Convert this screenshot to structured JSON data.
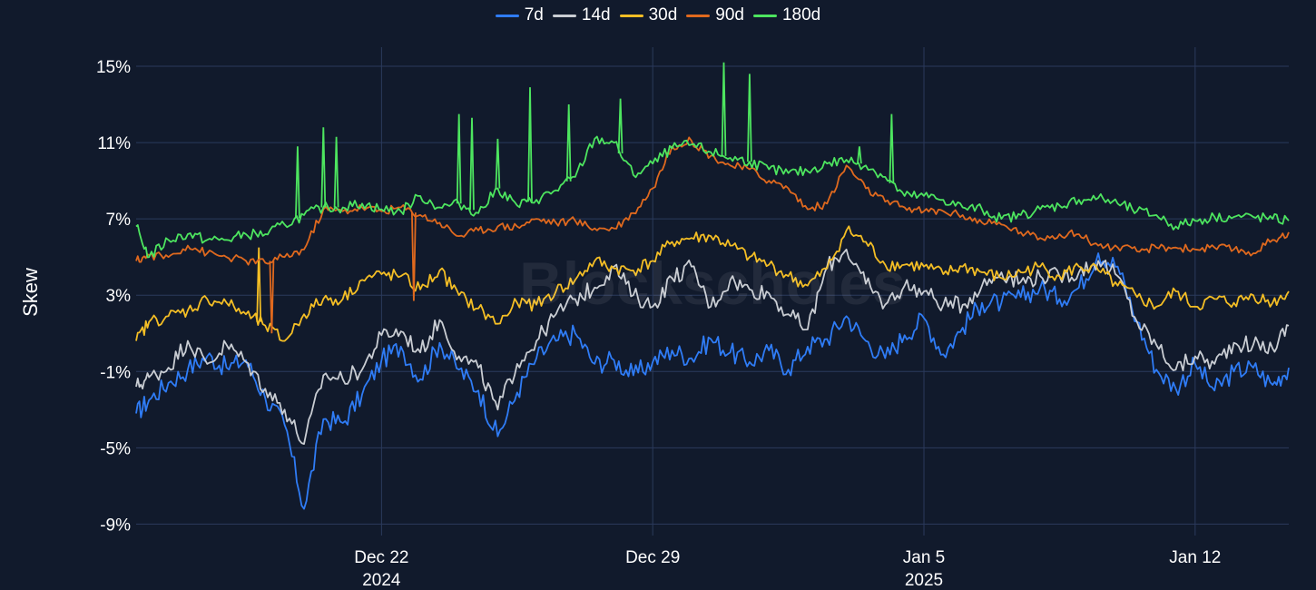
{
  "watermark": "Blockscholes",
  "chart_data": {
    "type": "line",
    "xlabel": "",
    "ylabel": "Skew",
    "y_unit": "%",
    "ylim": [
      -9.6,
      16.0
    ],
    "y_ticks": [
      15,
      11,
      7,
      3,
      -1,
      -5,
      -9
    ],
    "y_tick_labels": [
      "15%",
      "11%",
      "7%",
      "3%",
      "-1%",
      "-5%",
      "-9%"
    ],
    "x_range": [
      "2024-12-15T16:00",
      "2025-01-14T10:00"
    ],
    "x_ticks": [
      {
        "date": "2024-12-22",
        "label": "Dec 22",
        "sublabel": "2024"
      },
      {
        "date": "2024-12-29",
        "label": "Dec 29",
        "sublabel": ""
      },
      {
        "date": "2025-01-05",
        "label": "Jan 5",
        "sublabel": "2025"
      },
      {
        "date": "2025-01-12",
        "label": "Jan 12",
        "sublabel": ""
      }
    ],
    "grid": true,
    "legend_position": "top-center",
    "x": [
      "2024-12-15T16:00",
      "2024-12-16T00:00",
      "2024-12-16T12:00",
      "2024-12-17T00:00",
      "2024-12-17T12:00",
      "2024-12-18T00:00",
      "2024-12-18T12:00",
      "2024-12-19T00:00",
      "2024-12-19T12:00",
      "2024-12-20T00:00",
      "2024-12-20T12:00",
      "2024-12-21T00:00",
      "2024-12-21T12:00",
      "2024-12-22T00:00",
      "2024-12-22T12:00",
      "2024-12-23T00:00",
      "2024-12-23T12:00",
      "2024-12-24T00:00",
      "2024-12-24T12:00",
      "2024-12-25T00:00",
      "2024-12-25T12:00",
      "2024-12-26T00:00",
      "2024-12-26T12:00",
      "2024-12-27T00:00",
      "2024-12-27T12:00",
      "2024-12-28T00:00",
      "2024-12-28T12:00",
      "2024-12-29T00:00",
      "2024-12-29T12:00",
      "2024-12-30T00:00",
      "2024-12-30T12:00",
      "2024-12-31T00:00",
      "2024-12-31T12:00",
      "2025-01-01T00:00",
      "2025-01-01T12:00",
      "2025-01-02T00:00",
      "2025-01-02T12:00",
      "2025-01-03T00:00",
      "2025-01-03T12:00",
      "2025-01-04T00:00",
      "2025-01-04T12:00",
      "2025-01-05T00:00",
      "2025-01-05T12:00",
      "2025-01-06T00:00",
      "2025-01-06T12:00",
      "2025-01-07T00:00",
      "2025-01-07T12:00",
      "2025-01-08T00:00",
      "2025-01-08T12:00",
      "2025-01-09T00:00",
      "2025-01-09T12:00",
      "2025-01-10T00:00",
      "2025-01-10T12:00",
      "2025-01-11T00:00",
      "2025-01-11T12:00",
      "2025-01-12T00:00",
      "2025-01-12T12:00",
      "2025-01-13T00:00",
      "2025-01-13T12:00",
      "2025-01-14T00:00",
      "2025-01-14T10:00"
    ],
    "series": [
      {
        "name": "7d",
        "color": "#2f7cf6",
        "values": [
          -3.2,
          -2.5,
          -1.6,
          -0.9,
          -0.2,
          -0.8,
          -0.4,
          -2.4,
          -3.8,
          -8.2,
          -3.5,
          -3.7,
          -2.2,
          -0.4,
          0.3,
          -1.4,
          0.5,
          -0.9,
          -2.0,
          -4.4,
          -2.1,
          -0.3,
          0.6,
          1.0,
          -0.6,
          -0.4,
          -1.2,
          -0.5,
          0.1,
          -0.3,
          0.7,
          0.0,
          -0.5,
          0.1,
          -0.9,
          0.3,
          0.7,
          1.9,
          0.6,
          -0.3,
          0.9,
          1.8,
          -0.1,
          1.3,
          2.6,
          2.6,
          2.9,
          3.4,
          2.8,
          3.4,
          5.2,
          4.5,
          1.6,
          -0.9,
          -1.9,
          -0.6,
          -2.0,
          -1.0,
          -0.8,
          -1.7,
          -0.8
        ]
      },
      {
        "name": "14d",
        "color": "#c9cdd3",
        "values": [
          -1.8,
          -1.3,
          -0.8,
          0.6,
          -0.6,
          0.4,
          -0.5,
          -1.9,
          -3.0,
          -4.8,
          -1.2,
          -1.4,
          -0.9,
          0.9,
          1.1,
          0.0,
          1.7,
          -0.2,
          -0.8,
          -3.0,
          -0.6,
          0.6,
          2.0,
          2.8,
          3.4,
          4.5,
          3.0,
          2.4,
          3.9,
          4.5,
          2.4,
          3.8,
          3.3,
          3.1,
          2.0,
          1.2,
          4.5,
          5.4,
          3.6,
          2.5,
          3.5,
          3.2,
          2.5,
          2.5,
          3.5,
          4.2,
          3.7,
          4.0,
          4.0,
          4.2,
          4.8,
          4.0,
          1.6,
          0.4,
          -0.9,
          -0.2,
          -0.6,
          0.5,
          0.4,
          0.2,
          1.4
        ]
      },
      {
        "name": "30d",
        "color": "#f4be25",
        "values": [
          0.6,
          1.6,
          1.9,
          2.2,
          2.8,
          2.6,
          2.0,
          1.4,
          0.6,
          2.0,
          2.8,
          2.8,
          3.8,
          4.1,
          4.0,
          3.3,
          4.3,
          3.0,
          2.3,
          1.5,
          2.6,
          2.5,
          3.2,
          3.8,
          4.8,
          4.4,
          4.3,
          4.8,
          5.8,
          6.0,
          6.1,
          5.6,
          5.0,
          4.6,
          4.0,
          3.5,
          4.4,
          6.4,
          5.8,
          4.6,
          4.6,
          4.5,
          4.1,
          4.5,
          4.2,
          3.9,
          4.2,
          4.5,
          4.0,
          4.5,
          4.3,
          3.5,
          2.9,
          2.4,
          3.2,
          2.4,
          2.8,
          2.6,
          3.0,
          2.6,
          3.2
        ]
      },
      {
        "name": "90d",
        "color": "#e0691e",
        "values": [
          4.8,
          5.1,
          5.0,
          5.6,
          5.2,
          5.0,
          4.8,
          4.7,
          5.0,
          5.4,
          7.5,
          7.4,
          7.6,
          7.4,
          7.6,
          7.2,
          6.8,
          6.1,
          6.4,
          6.6,
          6.6,
          7.0,
          6.8,
          6.9,
          6.5,
          6.5,
          7.3,
          8.6,
          10.8,
          11.1,
          10.3,
          9.8,
          9.6,
          9.0,
          8.6,
          7.5,
          7.8,
          9.8,
          8.6,
          7.9,
          7.6,
          7.4,
          7.4,
          7.2,
          6.8,
          6.7,
          6.3,
          6.0,
          6.2,
          6.2,
          5.6,
          5.5,
          5.3,
          5.5,
          5.5,
          5.4,
          5.5,
          5.4,
          5.2,
          5.9,
          6.3
        ]
      },
      {
        "name": "180d",
        "color": "#4de55f",
        "values": [
          6.6,
          5.0,
          5.9,
          6.2,
          5.9,
          5.9,
          6.2,
          6.2,
          6.7,
          7.2,
          7.6,
          7.6,
          7.8,
          7.5,
          7.4,
          8.2,
          7.6,
          7.8,
          7.3,
          8.6,
          7.7,
          8.0,
          8.5,
          9.2,
          11.2,
          11.0,
          9.3,
          9.9,
          10.7,
          10.9,
          10.5,
          10.2,
          10.0,
          9.6,
          9.4,
          9.5,
          9.9,
          10.1,
          9.8,
          9.2,
          8.2,
          8.2,
          8.0,
          7.6,
          7.5,
          7.0,
          7.2,
          7.5,
          7.7,
          8.0,
          8.1,
          7.8,
          7.4,
          7.2,
          6.6,
          6.9,
          7.1,
          7.1,
          7.1,
          7.0,
          6.9
        ]
      }
    ],
    "spikes": [
      {
        "series": "180d",
        "x": "2024-12-19T20:00",
        "value": 10.8
      },
      {
        "series": "180d",
        "x": "2024-12-20T12:00",
        "value": 11.8
      },
      {
        "series": "180d",
        "x": "2024-12-20T20:00",
        "value": 11.3
      },
      {
        "series": "180d",
        "x": "2024-12-24T00:00",
        "value": 12.5
      },
      {
        "series": "180d",
        "x": "2024-12-24T08:00",
        "value": 12.3
      },
      {
        "series": "180d",
        "x": "2024-12-25T00:00",
        "value": 11.2
      },
      {
        "series": "180d",
        "x": "2024-12-25T20:00",
        "value": 13.9
      },
      {
        "series": "180d",
        "x": "2024-12-26T20:00",
        "value": 13.0
      },
      {
        "series": "180d",
        "x": "2024-12-28T04:00",
        "value": 13.3
      },
      {
        "series": "180d",
        "x": "2024-12-30T20:00",
        "value": 15.2
      },
      {
        "series": "180d",
        "x": "2024-12-31T12:00",
        "value": 14.6
      },
      {
        "series": "180d",
        "x": "2025-01-03T08:00",
        "value": 10.8
      },
      {
        "series": "180d",
        "x": "2025-01-04T04:00",
        "value": 12.5
      },
      {
        "series": "90d",
        "x": "2024-12-19T04:00",
        "value": 1.0
      },
      {
        "series": "90d",
        "x": "2024-12-22T20:00",
        "value": 2.7
      },
      {
        "series": "30d",
        "x": "2024-12-18T20:00",
        "value": 5.5
      }
    ]
  }
}
